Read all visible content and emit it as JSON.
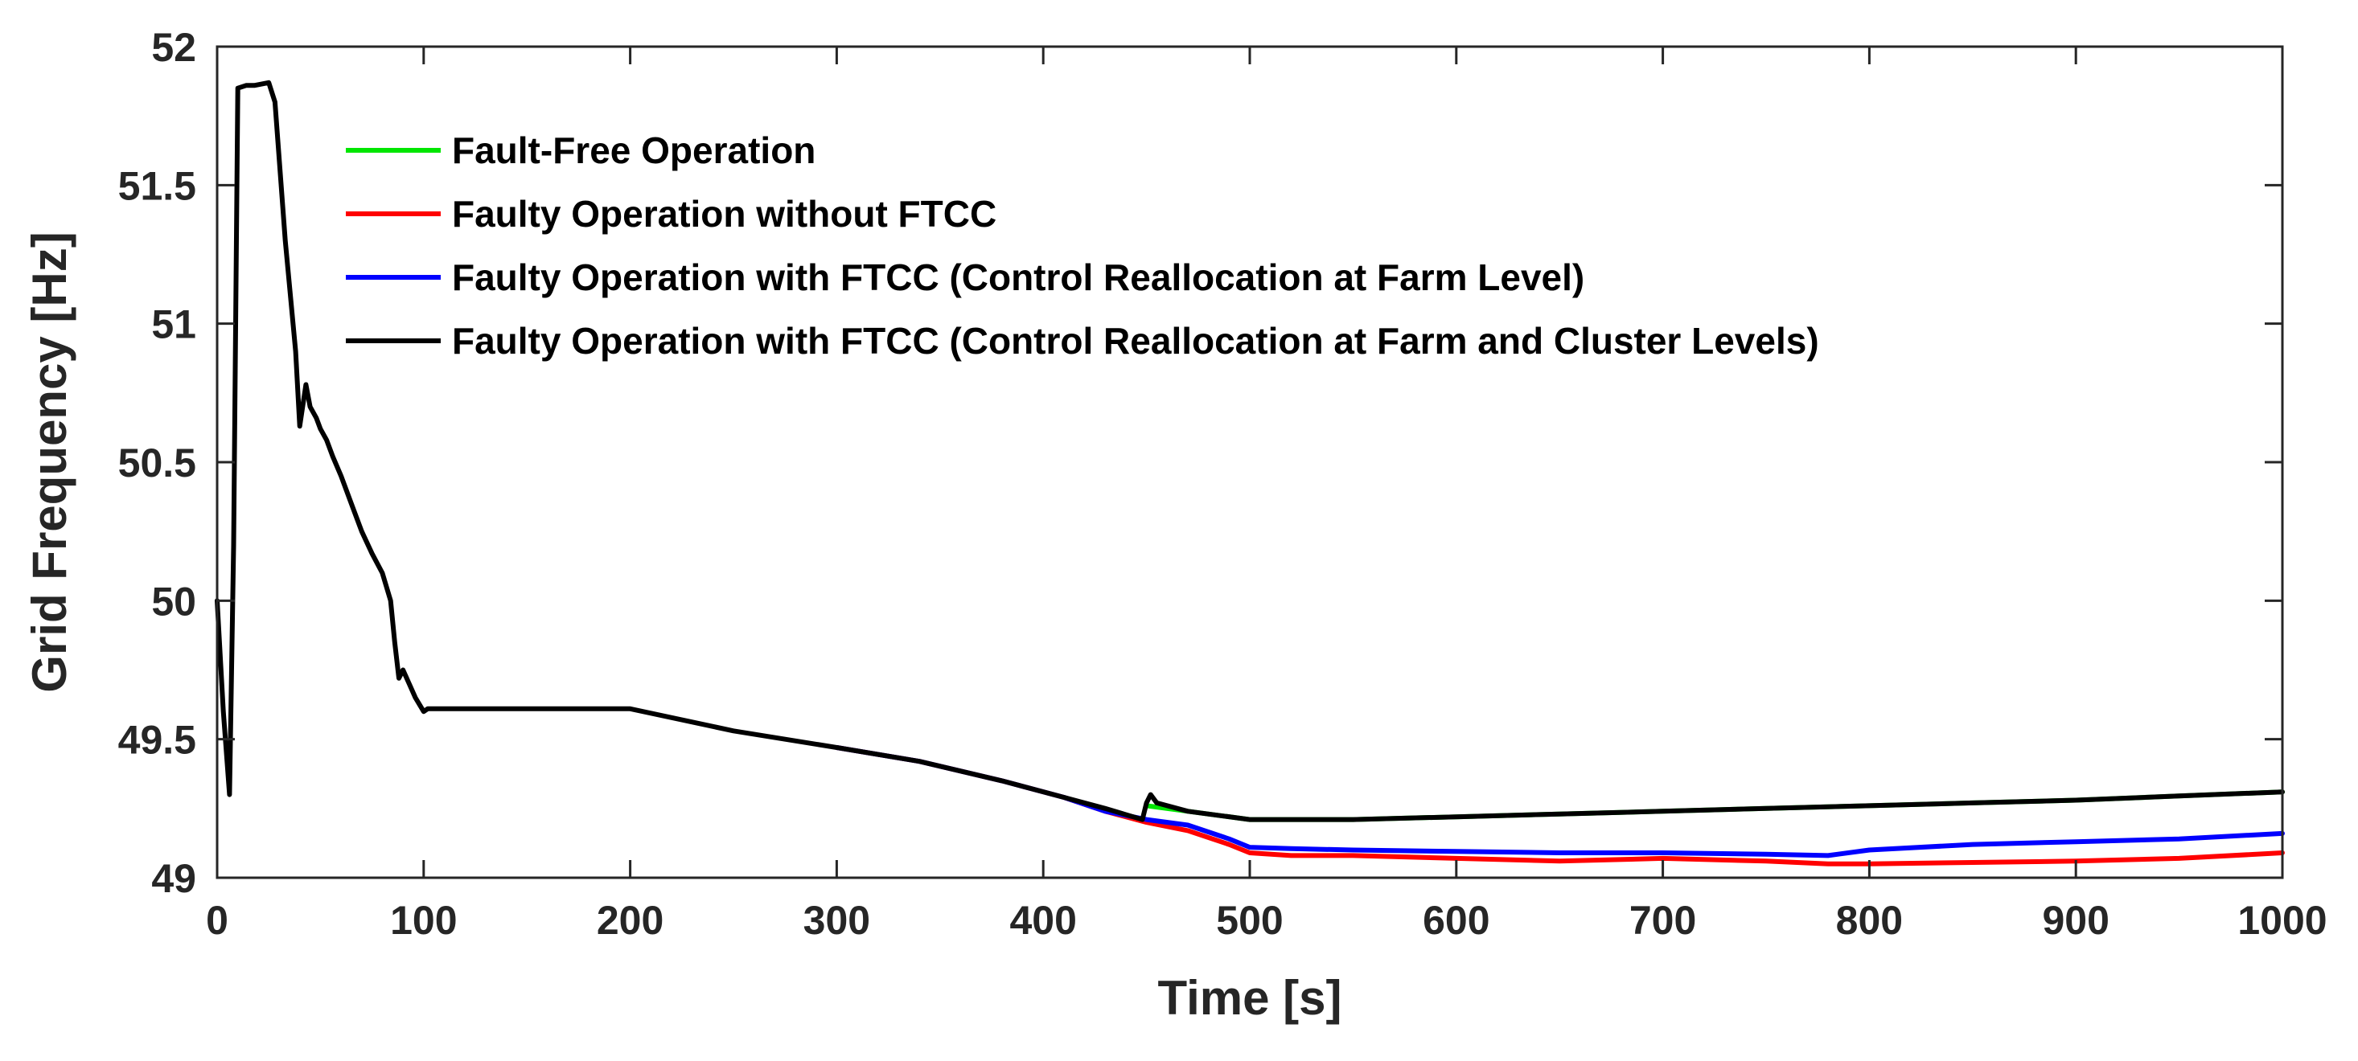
{
  "chart_data": {
    "type": "line",
    "title": "",
    "xlabel": "Time [s]",
    "ylabel": "Grid Frequency [Hz]",
    "xlim": [
      0,
      1000
    ],
    "ylim": [
      49,
      52
    ],
    "xticks": [
      0,
      100,
      200,
      300,
      400,
      500,
      600,
      700,
      800,
      900,
      1000
    ],
    "yticks": [
      49,
      49.5,
      50,
      50.5,
      51,
      51.5,
      52
    ],
    "xtick_labels": [
      "0",
      "100",
      "200",
      "300",
      "400",
      "500",
      "600",
      "700",
      "800",
      "900",
      "1000"
    ],
    "ytick_labels": [
      "49",
      "49.5",
      "50",
      "50.5",
      "51",
      "51.5",
      "52"
    ],
    "grid": false,
    "legend_position": "top-left",
    "series": [
      {
        "name": "Fault-Free Operation",
        "color": "#00e600",
        "x": [
          450,
          470,
          500,
          550,
          600,
          650,
          700,
          750,
          800,
          850,
          900,
          950,
          1000
        ],
        "y": [
          49.26,
          49.24,
          49.21,
          49.21,
          49.22,
          49.23,
          49.24,
          49.25,
          49.26,
          49.27,
          49.28,
          49.295,
          49.31
        ]
      },
      {
        "name": "Faulty Operation without FTCC",
        "color": "#ff0000",
        "x": [
          300,
          340,
          380,
          410,
          430,
          450,
          470,
          490,
          500,
          520,
          550,
          600,
          650,
          700,
          750,
          780,
          800,
          850,
          900,
          950,
          1000
        ],
        "y": [
          49.47,
          49.42,
          49.35,
          49.29,
          49.24,
          49.2,
          49.17,
          49.12,
          49.09,
          49.08,
          49.08,
          49.07,
          49.06,
          49.07,
          49.06,
          49.05,
          49.05,
          49.055,
          49.06,
          49.07,
          49.09
        ]
      },
      {
        "name": "Faulty Operation with FTCC (Control Reallocation at Farm Level)",
        "color": "#0000ff",
        "x": [
          300,
          340,
          380,
          410,
          430,
          450,
          470,
          490,
          500,
          520,
          550,
          600,
          650,
          700,
          750,
          780,
          800,
          850,
          900,
          950,
          1000
        ],
        "y": [
          49.47,
          49.42,
          49.35,
          49.29,
          49.24,
          49.21,
          49.19,
          49.14,
          49.11,
          49.105,
          49.1,
          49.095,
          49.09,
          49.09,
          49.085,
          49.08,
          49.1,
          49.12,
          49.13,
          49.14,
          49.16
        ]
      },
      {
        "name": "Faulty Operation with FTCC (Control Reallocation at Farm and Cluster Levels)",
        "color": "#000000",
        "x": [
          0,
          3,
          6,
          8,
          10,
          14,
          18,
          25,
          28,
          33,
          38,
          40,
          43,
          45,
          48,
          50,
          53,
          56,
          60,
          65,
          70,
          75,
          80,
          84,
          86,
          88,
          90,
          93,
          96,
          100,
          102,
          110,
          130,
          150,
          170,
          190,
          200,
          250,
          300,
          340,
          380,
          410,
          430,
          448,
          450,
          452,
          455,
          470,
          500,
          550,
          600,
          650,
          700,
          750,
          800,
          850,
          900,
          950,
          1000
        ],
        "y": [
          50.0,
          49.6,
          49.3,
          50.2,
          51.85,
          51.86,
          51.86,
          51.87,
          51.8,
          51.3,
          50.9,
          50.63,
          50.78,
          50.7,
          50.66,
          50.62,
          50.58,
          50.52,
          50.45,
          50.35,
          50.25,
          50.17,
          50.1,
          50.0,
          49.85,
          49.72,
          49.75,
          49.7,
          49.65,
          49.6,
          49.61,
          49.61,
          49.61,
          49.61,
          49.61,
          49.61,
          49.61,
          49.53,
          49.47,
          49.42,
          49.35,
          49.29,
          49.25,
          49.21,
          49.27,
          49.3,
          49.27,
          49.24,
          49.21,
          49.21,
          49.22,
          49.23,
          49.24,
          49.25,
          49.26,
          49.27,
          49.28,
          49.295,
          49.31
        ]
      }
    ]
  }
}
